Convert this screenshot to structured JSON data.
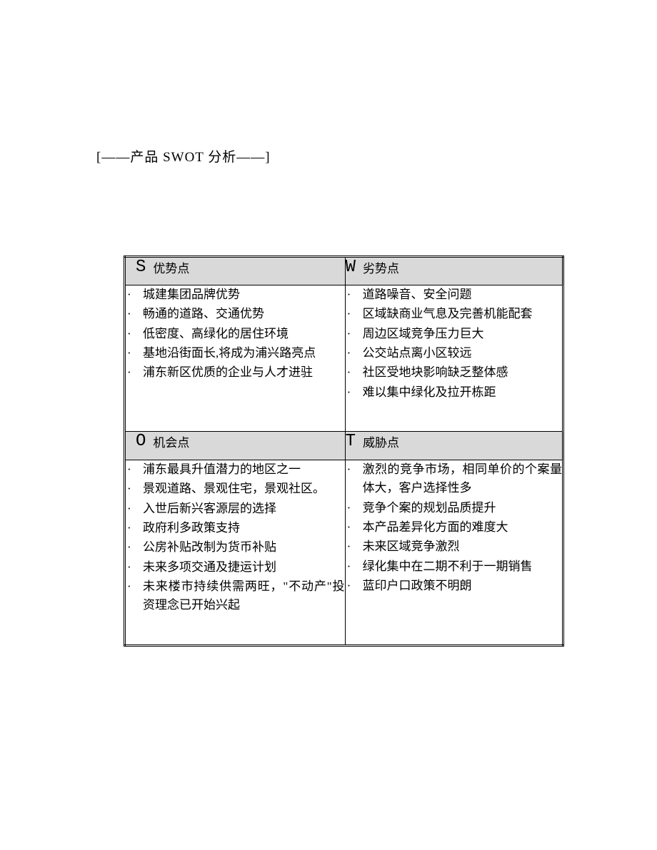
{
  "page_title": "[——产品 SWOT 分析——]",
  "table": {
    "border_style": "double",
    "border_color": "#000000",
    "header_bg": "#d9d9d9",
    "background": "#ffffff",
    "text_color": "#000000",
    "letter_fontsize": 24,
    "label_fontsize": 17,
    "body_fontsize": 17
  },
  "swot": {
    "s": {
      "letter": "S",
      "label": "优势点",
      "items": [
        "城建集团品牌优势",
        "畅通的道路、交通优势",
        "低密度、高绿化的居住环境",
        "基地沿街面长,将成为浦兴路亮点",
        "浦东新区优质的企业与人才进驻"
      ]
    },
    "w": {
      "letter": "W",
      "label": "劣势点",
      "items": [
        "道路噪音、安全问题",
        "区域缺商业气息及完善机能配套",
        "周边区域竞争压力巨大",
        "公交站点离小区较远",
        "社区受地块影响缺乏整体感",
        "难以集中绿化及拉开栋距"
      ]
    },
    "o": {
      "letter": "O",
      "label": "机会点",
      "items": [
        "浦东最具升值潜力的地区之一",
        "景观道路、景观住宅，景观社区。",
        "入世后新兴客源层的选择",
        "政府利多政策支持",
        "公房补贴改制为货币补贴",
        "未来多项交通及捷运计划",
        "未来楼市持续供需两旺，\"不动产\"投资理念已开始兴起"
      ]
    },
    "t": {
      "letter": "T",
      "label": "威胁点",
      "items": [
        "激烈的竞争市场，相同单价的个案量体大，客户选择性多",
        "竞争个案的规划品质提升",
        "本产品差异化方面的难度大",
        "未来区域竞争激烈",
        "绿化集中在二期不利于一期销售",
        "蓝印户口政策不明朗"
      ]
    }
  },
  "bullet_char": "·"
}
